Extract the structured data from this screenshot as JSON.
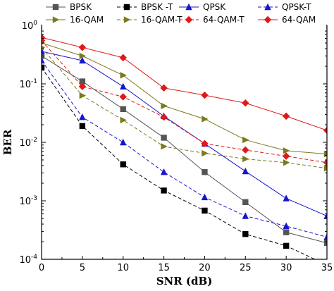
{
  "chart_data": {
    "type": "line",
    "title": "",
    "xlabel": "SNR (dB)",
    "ylabel": "BER",
    "y_scale": "log",
    "xlim": [
      0,
      35
    ],
    "ylim": [
      0.0001,
      1
    ],
    "x_ticks": [
      "0",
      "5",
      "10",
      "15",
      "20",
      "25",
      "30",
      "35"
    ],
    "y_ticks": [
      {
        "base": "10",
        "exp": "-4",
        "value": 0.0001
      },
      {
        "base": "10",
        "exp": "-3",
        "value": 0.001
      },
      {
        "base": "10",
        "exp": "-2",
        "value": 0.01
      },
      {
        "base": "10",
        "exp": "-1",
        "value": 0.1
      },
      {
        "base": "10",
        "exp": "0",
        "value": 1
      }
    ],
    "grid": false,
    "legend_position": "top",
    "x": [
      0,
      5,
      10,
      15,
      20,
      25,
      30,
      35
    ],
    "series": [
      {
        "name": "BPSK",
        "color": "#555555",
        "marker": "square",
        "dashed": false,
        "values": [
          0.3,
          0.11,
          0.037,
          0.012,
          0.0031,
          0.00095,
          0.00029,
          0.00019
        ]
      },
      {
        "name": "BPSK -T",
        "color": "#000000",
        "marker": "square",
        "dashed": true,
        "values": [
          0.19,
          0.019,
          0.0042,
          0.0015,
          0.00068,
          0.00027,
          0.00017,
          8e-05
        ]
      },
      {
        "name": "QPSK",
        "color": "#1515d0",
        "marker": "triangle",
        "dashed": false,
        "values": [
          0.36,
          0.25,
          0.09,
          0.028,
          0.0095,
          0.0032,
          0.0011,
          0.00055
        ]
      },
      {
        "name": "QPSK-T",
        "color": "#1515d0",
        "marker": "triangle",
        "dashed": true,
        "values": [
          0.25,
          0.027,
          0.01,
          0.0031,
          0.00115,
          0.00055,
          0.00037,
          0.00024
        ]
      },
      {
        "name": "16-QAM",
        "color": "#7a7a1e",
        "marker": "triangle-right",
        "dashed": false,
        "values": [
          0.5,
          0.3,
          0.14,
          0.042,
          0.025,
          0.011,
          0.0072,
          0.0063
        ]
      },
      {
        "name": "16-QAM-T",
        "color": "#7a7a1e",
        "marker": "triangle-right",
        "dashed": true,
        "values": [
          0.42,
          0.063,
          0.024,
          0.0085,
          0.0065,
          0.0052,
          0.0045,
          0.0036
        ]
      },
      {
        "name": "64-QAM-T",
        "color": "#e01818",
        "marker": "diamond",
        "dashed": true,
        "values": [
          0.55,
          0.09,
          0.06,
          0.027,
          0.0095,
          0.0074,
          0.0058,
          0.0045
        ]
      },
      {
        "name": "64-QAM",
        "color": "#e01818",
        "marker": "diamond",
        "dashed": false,
        "values": [
          0.62,
          0.42,
          0.28,
          0.085,
          0.064,
          0.047,
          0.028,
          0.016
        ]
      }
    ]
  }
}
